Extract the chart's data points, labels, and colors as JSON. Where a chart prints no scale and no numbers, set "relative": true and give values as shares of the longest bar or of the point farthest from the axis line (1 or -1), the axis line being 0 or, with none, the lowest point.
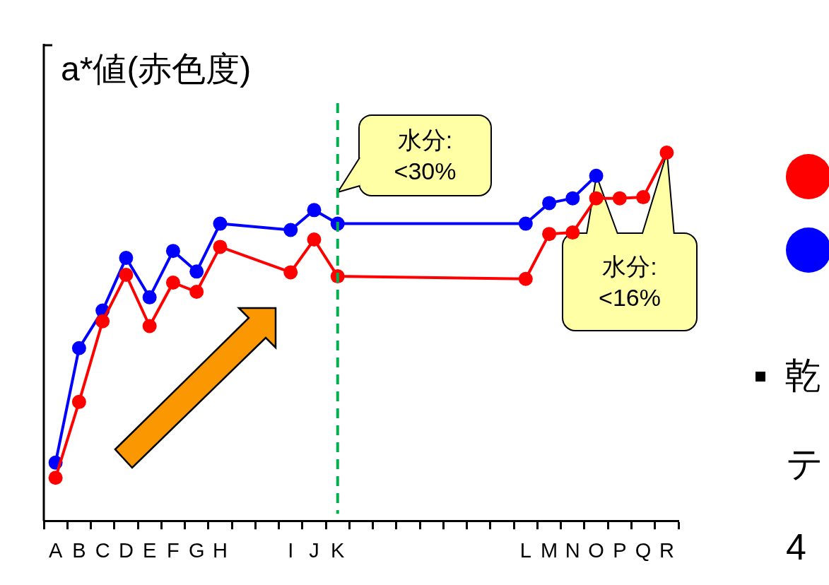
{
  "chart_data": {
    "type": "line",
    "relative": true,
    "ylabel": "a*値(赤色度)",
    "categories": [
      "A",
      "B",
      "C",
      "D",
      "E",
      "F",
      "G",
      "H",
      null,
      null,
      "I",
      "J",
      "K",
      null,
      null,
      null,
      null,
      null,
      null,
      null,
      "L",
      "M",
      "N",
      "O",
      "P",
      "Q",
      "R"
    ],
    "series": [
      {
        "color": "#ff0000",
        "values": [
          0.117,
          0.323,
          0.542,
          0.668,
          0.529,
          0.647,
          0.622,
          0.744,
          null,
          null,
          0.675,
          0.764,
          0.664,
          null,
          null,
          null,
          null,
          null,
          null,
          null,
          0.657,
          0.779,
          0.783,
          0.876,
          0.876,
          0.879,
          1
        ]
      },
      {
        "color": "#0000ff",
        "values": [
          0.158,
          0.469,
          0.571,
          0.714,
          0.607,
          0.733,
          0.677,
          0.807,
          null,
          null,
          0.79,
          0.844,
          0.807,
          null,
          null,
          null,
          null,
          null,
          null,
          null,
          0.807,
          0.863,
          0.876,
          0.937,
          null,
          null,
          null
        ]
      }
    ],
    "ref_lines": [
      {
        "axis": "x",
        "value": "K",
        "color": "#00b050",
        "line_style": "dashed"
      }
    ],
    "annotations": [
      "水分:\n<30%",
      "水分:\n<16%",
      "乾",
      "テ",
      "4"
    ],
    "marker": "circle",
    "grid": false,
    "legend": false
  }
}
